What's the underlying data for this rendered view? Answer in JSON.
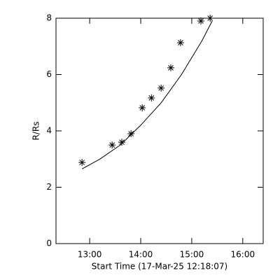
{
  "chart_data": {
    "type": "scatter",
    "xlabel": "Start Time (17-Mar-25 12:18:07)",
    "ylabel": "R/Rs",
    "x": [
      12.85,
      13.44,
      13.63,
      13.81,
      14.03,
      14.21,
      14.4,
      14.59,
      14.78,
      15.18,
      15.36
    ],
    "series": [
      {
        "color": "#000000",
        "marker": "asterisk",
        "values": [
          2.88,
          3.5,
          3.6,
          3.9,
          4.82,
          5.17,
          5.52,
          6.24,
          7.13,
          7.9,
          8.0
        ]
      }
    ],
    "fit": {
      "color": "#000000",
      "x": [
        12.85,
        13.2,
        13.6,
        14.0,
        14.4,
        14.8,
        15.2,
        15.4
      ],
      "values": [
        2.65,
        3.0,
        3.5,
        4.2,
        5.0,
        6.0,
        7.2,
        7.9
      ]
    },
    "xlim": [
      12.34,
      16.4
    ],
    "ylim": [
      0,
      8
    ],
    "xticks": [
      {
        "value": 13,
        "label": "13:00"
      },
      {
        "value": 14,
        "label": "14:00"
      },
      {
        "value": 15,
        "label": "15:00"
      },
      {
        "value": 16,
        "label": "16:00"
      }
    ],
    "yticks": [
      0,
      2,
      4,
      6,
      8
    ]
  }
}
